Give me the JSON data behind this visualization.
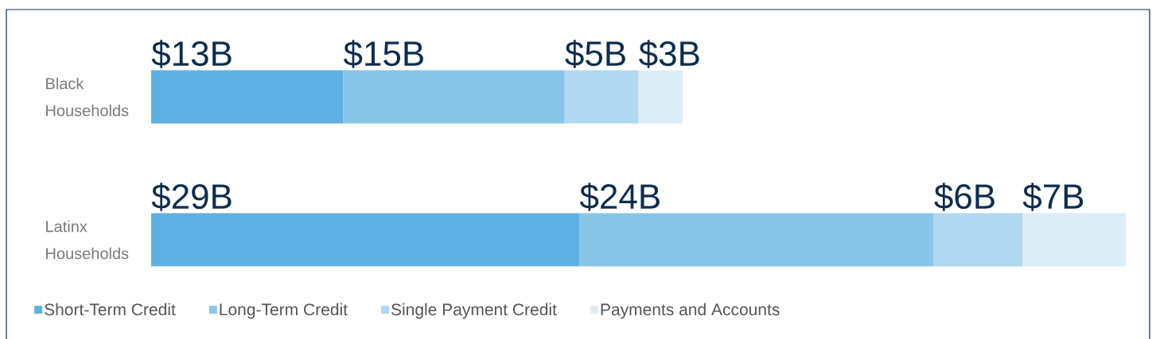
{
  "chart_data": {
    "type": "bar",
    "orientation": "horizontal",
    "stacked": true,
    "legend": "bottom",
    "categories": [
      "Black Households",
      "Latinx Households"
    ],
    "series": [
      {
        "name": "Short-Term Credit",
        "color": "#5eb0e2",
        "values": [
          13,
          29
        ],
        "value_labels": [
          "$13B",
          "$29B"
        ]
      },
      {
        "name": "Long-Term Credit",
        "color": "#88c5e9",
        "values": [
          15,
          24
        ],
        "value_labels": [
          "$15B",
          "$24B"
        ]
      },
      {
        "name": "Single Payment Credit",
        "color": "#b0d8f0",
        "values": [
          5,
          6
        ],
        "value_labels": [
          "$5B",
          "$6B"
        ]
      },
      {
        "name": "Payments and Accounts",
        "color": "#ddedf8",
        "values": [
          3,
          7
        ],
        "value_labels": [
          "$3B",
          "$7B"
        ]
      }
    ]
  }
}
